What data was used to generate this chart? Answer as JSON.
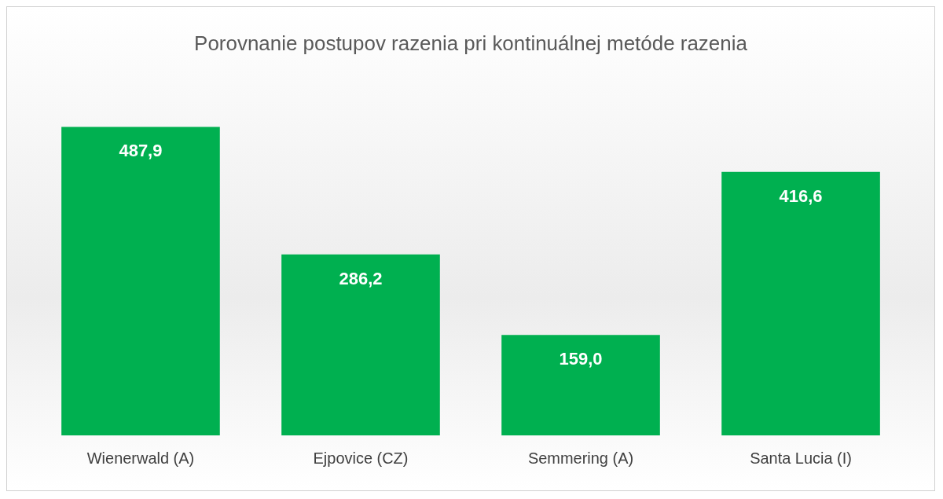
{
  "chart_data": {
    "type": "bar",
    "title": "Porovnanie postupov razenia pri kontinuálnej metóde razenia",
    "categories": [
      "Wienerwald (A)",
      "Ejpovice (CZ)",
      "Semmering (A)",
      "Santa Lucia (I)"
    ],
    "values": [
      487.9,
      286.2,
      159.0,
      416.6
    ],
    "value_labels": [
      "487,9",
      "286,2",
      "159,0",
      "416,6"
    ],
    "color": "#00b050",
    "grid": false,
    "legend": false,
    "tick_labels": "x"
  }
}
